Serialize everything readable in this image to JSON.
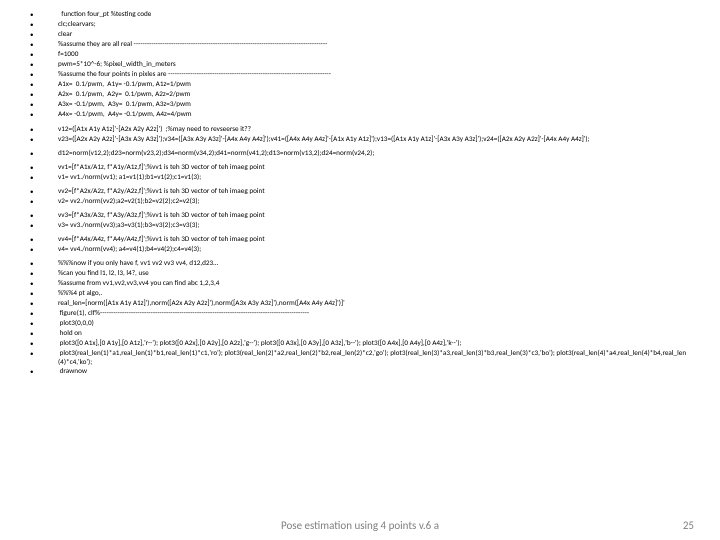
{
  "code_lines": [
    "  function four_pt %testing code",
    "clc;clearvars;",
    "clear",
    "%assume they are all real ----------------------------------------------------------------------------------------",
    "f=1000",
    "pwm=5*10^-6; %pixel_width_in_meters",
    "%assume the four points in pixles are --------------------------------------------------------------------------",
    "A1x=  0.1/pwm,  A1y= -0.1/pwm, A1z=1/pwm",
    "A2x=  0.1/pwm,  A2y=  0.1/pwm, A2z=2/pwm",
    "A3x= -0.1/pwm,  A3y=  0.1/pwm, A3z=3/pwm",
    "A4x= -0.1/pwm,  A4y= -0.1/pwm, A4z=4/pwm",
    "",
    "v12=([A1x A1y A1z]'-[A2x A2y A2z]')  ;%may need to revseerse it??",
    "v23=([A2x A2y A2z]'-[A3x A3y A3z]');v34=([A3x A3y A3z]'-[A4x A4y A4z]');v41=([A4x A4y A4z]'-[A1x A1y A1z]');v13=([A1x A1y A1z]'-[A3x A3y A3z]');v24=([A2x A2y A2z]'-[A4x A4y A4z]');",
    "",
    "d12=norm(v12,2);d23=norm(v23,2);d34=norm(v34,2);d41=norm(v41,2);d13=norm(v13,2);d24=norm(v24,2);",
    "",
    "vv1=[f*A1x/A1z, f*A1y/A1z,f]';%vv1 is teh 3D vector of teh imaeg point",
    "v1= vv1./norm(vv1); a1=v1(1);b1=v1(2);c1=v1(3);",
    "",
    "vv2=[f*A2x/A2z, f*A2y/A2z,f]';%vv1 is teh 3D vector of teh imaeg point",
    "v2= vv2./norm(vv2);a2=v2(1);b2=v2(2);c2=v2(3);",
    "",
    "vv3=[f*A3x/A3z, f*A3y/A3z,f]';%vv1 is teh 3D vector of teh imaeg point",
    "v3= vv3./norm(vv3);a3=v3(1);b3=v3(2);c3=v3(3);",
    "",
    "vv4=[f*A4x/A4z, f*A4y/A4z,f]';%vv1 is teh 3D vector of teh imaeg point",
    "v4= vv4./norm(vv4); a4=v4(1);b4=v4(2);c4=v4(3);",
    "",
    "%%%now if you only have f, vv1 vv2 vv3 vv4, d12,d23…",
    "%can you find l1, l2, l3, l4?, use",
    "%assume from vv1,vv2,vv3,vv4 you can find abc 1,2,3,4",
    "%%%4 pt algo,.",
    "real_len=[norm([A1x A1y A1z]'),norm([A2x A2y A2z]'),norm([A3x A3y A3z]'),norm([A4x A4y A4z]')]'",
    " figure(1), clf%-----------------------------------------------------------------------------------------------",
    " plot3(0,0,0)",
    " hold on",
    " plot3([0 A1x],[0 A1y],[0 A1z],'r--'); plot3([0 A2x],[0 A2y],[0 A2z],'g--'); plot3([0 A3x],[0 A3y],[0 A3z],'b--'); plot3([0 A4x],[0 A4y],[0 A4z],'k--');",
    " plot3(real_len(1)*a1,real_len(1)*b1,real_len(1)*c1,'ro'); plot3(real_len(2)*a2,real_len(2)*b2,real_len(2)*c2,'go'); plot3(real_len(3)*a3,real_len(3)*b3,real_len(3)*c3,'bo'); plot3(real_len(4)*a4,real_len(4)*b4,real_len(4)*c4,'ko');",
    " drawnow"
  ],
  "footer_text": "Pose estimation using 4 points v.6 a",
  "page_number": "25"
}
